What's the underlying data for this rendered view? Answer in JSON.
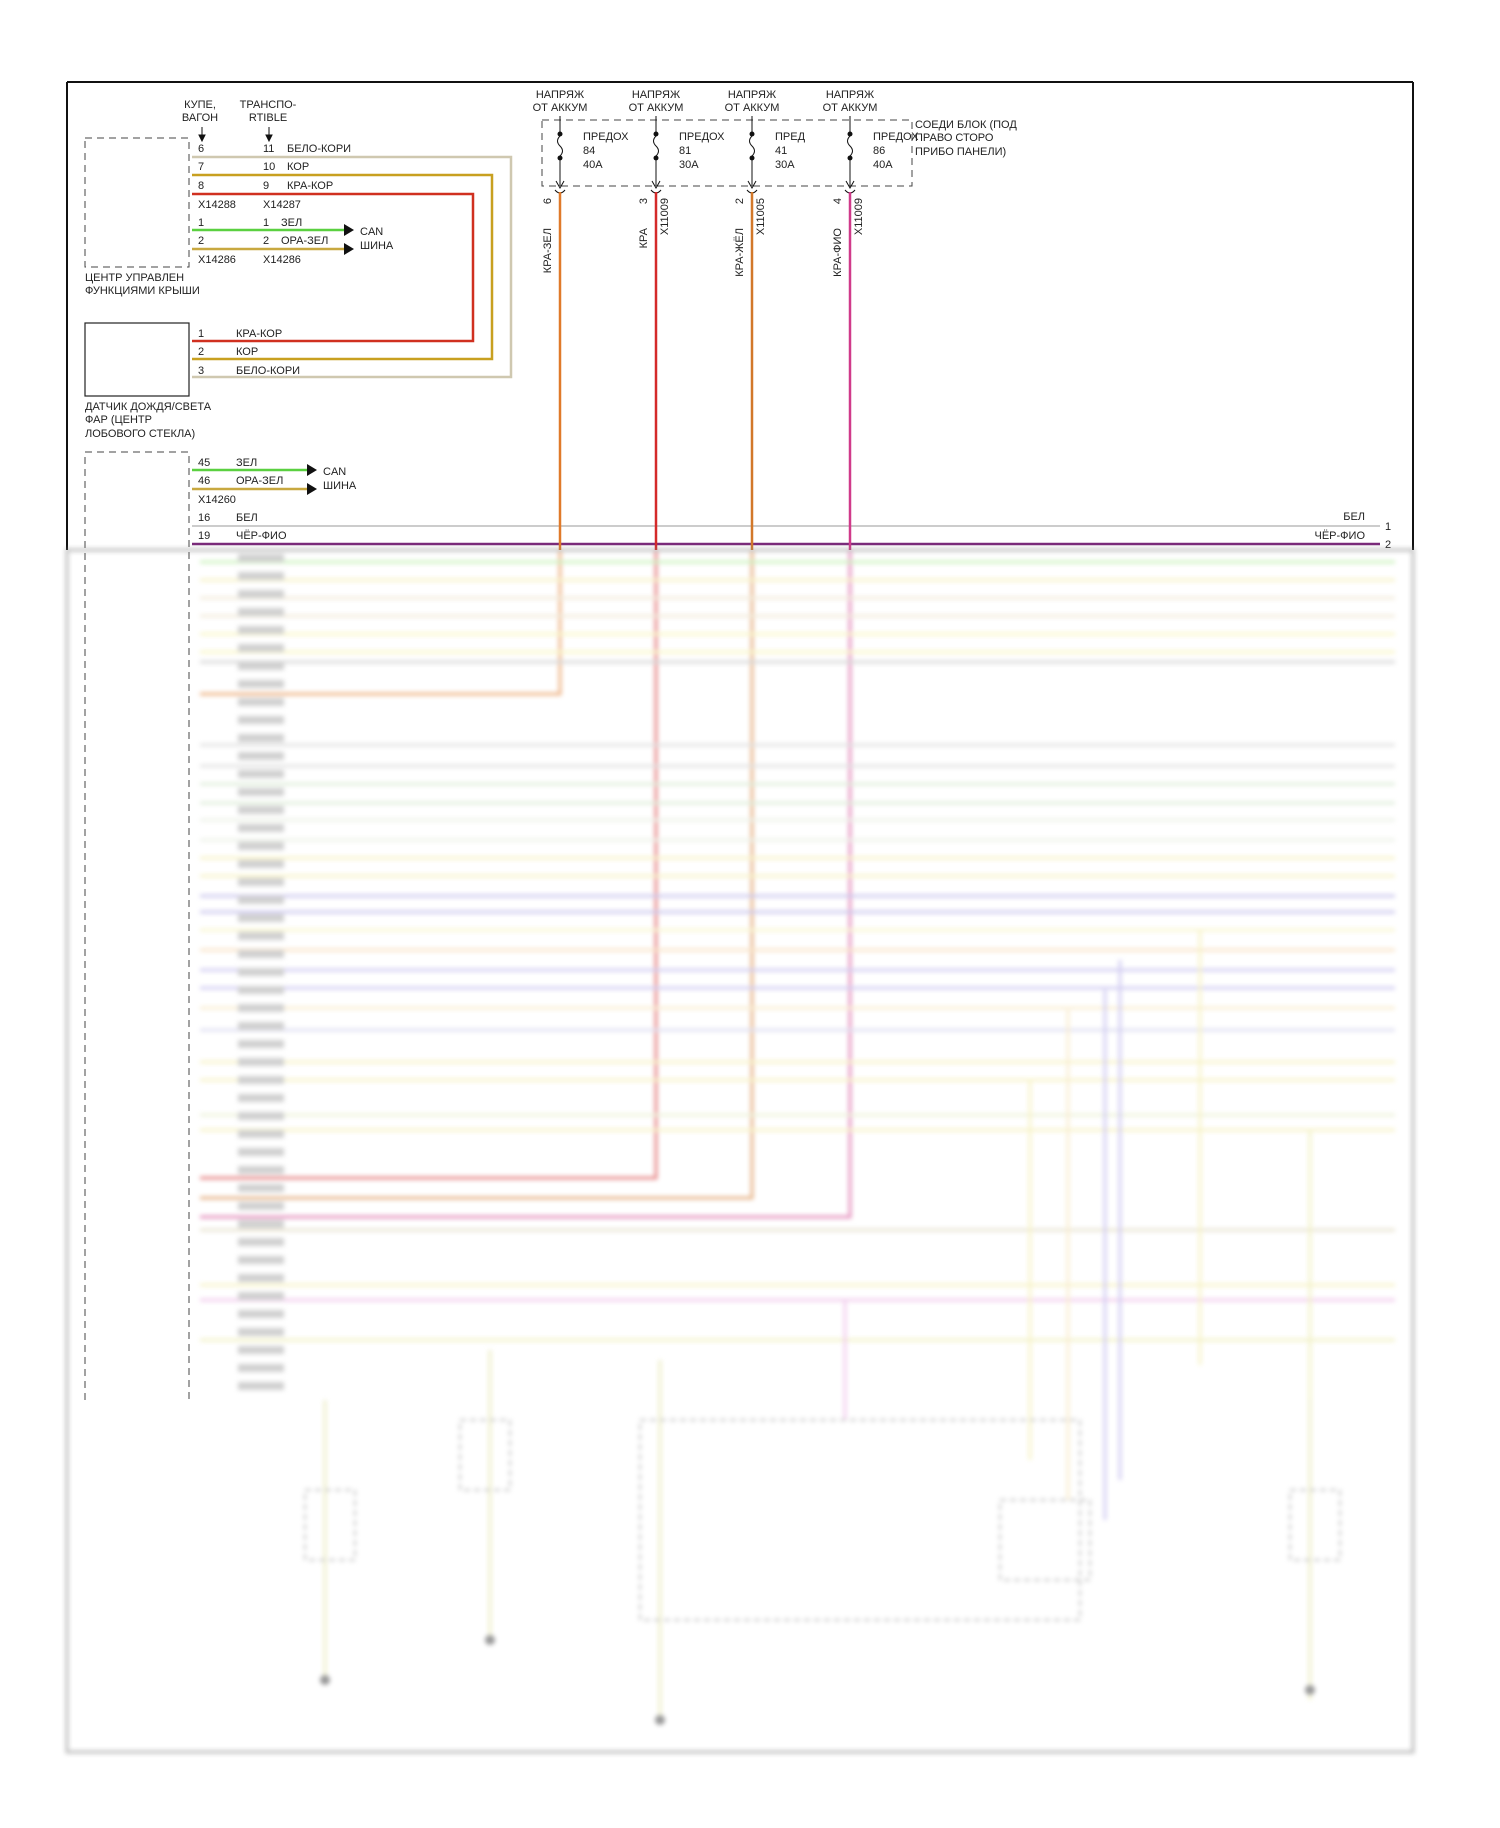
{
  "roof_module": {
    "variant_left": [
      "КУПЕ,",
      "ВАГОН"
    ],
    "variant_right": [
      "ТРАНСПО-",
      "RTIBLE"
    ],
    "label": [
      "ЦЕНТР УПРАВЛЕН",
      "ФУНКЦИЯМИ КРЫШИ"
    ],
    "rows": [
      {
        "pin_a": "6",
        "pin_b": "11",
        "wire": "БЕЛО-КОРИ"
      },
      {
        "pin_a": "7",
        "pin_b": "10",
        "wire": "КОР"
      },
      {
        "pin_a": "8",
        "pin_b": "9",
        "wire": "КРА-КОР"
      }
    ],
    "connector_a1": "X14288",
    "connector_b1": "X14287",
    "can_rows": [
      {
        "pin_a": "1",
        "pin_b": "1",
        "wire": "ЗЕЛ"
      },
      {
        "pin_a": "2",
        "pin_b": "2",
        "wire": "ОРА-ЗЕЛ"
      }
    ],
    "connector_a2": "X14286",
    "connector_b2": "X14286",
    "can_label": [
      "CAN",
      "ШИНА"
    ]
  },
  "rain_sensor": {
    "label": [
      "ДАТЧИК ДОЖДЯ/СВЕТА",
      "ФАР (ЦЕНТР",
      "ЛОБОВОГО СТЕКЛА)"
    ],
    "rows": [
      {
        "pin": "1",
        "wire": "КРА-КОР"
      },
      {
        "pin": "2",
        "wire": "КОР"
      },
      {
        "pin": "3",
        "wire": "БЕЛО-КОРИ"
      }
    ]
  },
  "body_module": {
    "can_rows": [
      {
        "pin": "45",
        "wire": "ЗЕЛ"
      },
      {
        "pin": "46",
        "wire": "ОРА-ЗЕЛ"
      }
    ],
    "connector": "X14260",
    "can_label": [
      "CAN",
      "ШИНА"
    ],
    "rows": [
      {
        "pin": "16",
        "wire": "БЕЛ",
        "right_label": "БЕЛ",
        "right_pin": "1"
      },
      {
        "pin": "19",
        "wire": "ЧЁР-ФИО",
        "right_label": "ЧЁР-ФИО",
        "right_pin": "2"
      }
    ]
  },
  "fuse_block": {
    "label": [
      "СОЕДИ БЛОК (ПОД",
      "ПРАВО СТОРО",
      "ПРИБО ПАНЕЛИ)"
    ],
    "fuses": [
      {
        "source": [
          "НАПРЯЖ",
          "ОТ АККУМ"
        ],
        "name": "ПРЕДОХ",
        "number": "84",
        "rating": "40A",
        "pin": "6",
        "connector": "",
        "wire": "КРА-ЗЕЛ",
        "color": "#e07a2a"
      },
      {
        "source": [
          "НАПРЯЖ",
          "ОТ АККУМ"
        ],
        "name": "ПРЕДОХ",
        "number": "81",
        "rating": "30A",
        "pin": "3",
        "connector": "X11009",
        "wire": "КРА",
        "color": "#d42a2a"
      },
      {
        "source": [
          "НАПРЯЖ",
          "ОТ АККУМ"
        ],
        "name": "ПРЕД",
        "number": "41",
        "rating": "30A",
        "pin": "2",
        "connector": "X11005",
        "wire": "КРА-ЖЁЛ",
        "color": "#d2782a"
      },
      {
        "source": [
          "НАПРЯЖ",
          "ОТ АККУМ"
        ],
        "name": "ПРЕДОХ",
        "number": "86",
        "rating": "40A",
        "pin": "4",
        "connector": "X11009",
        "wire": "КРА-ФИО",
        "color": "#d03a8a"
      }
    ]
  },
  "wire_colors": {
    "white_brown": "#cfc8b0",
    "brown": "#c8a020",
    "red_brown": "#d03020",
    "green": "#5ad040",
    "orange_green": "#c8a840",
    "white": "#cccccc",
    "black_violet": "#7a2a7a"
  }
}
